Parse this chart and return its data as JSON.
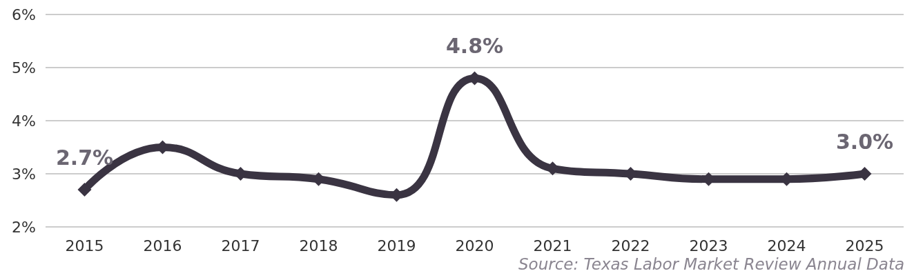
{
  "chart_data": {
    "type": "line",
    "categories": [
      "2015",
      "2016",
      "2017",
      "2018",
      "2019",
      "2020",
      "2021",
      "2022",
      "2023",
      "2024",
      "2025"
    ],
    "series": [
      {
        "color": "#3a3442",
        "values": [
          2.7,
          3.5,
          3.0,
          2.9,
          2.6,
          4.8,
          3.1,
          3.0,
          2.9,
          2.9,
          3.0
        ],
        "value_labels": [
          "2.7%",
          null,
          null,
          null,
          null,
          "4.8%",
          null,
          null,
          null,
          null,
          "3.0%"
        ]
      }
    ],
    "ylim": [
      2,
      6
    ],
    "yticks": [
      {
        "value": 2,
        "label": "2%"
      },
      {
        "value": 3,
        "label": "3%"
      },
      {
        "value": 4,
        "label": "4%"
      },
      {
        "value": 5,
        "label": "5%"
      },
      {
        "value": 6,
        "label": "6%"
      }
    ],
    "grid": "y",
    "marker": "diamond",
    "line_style": "solid",
    "annotations": [
      "Source: Texas Labor Market Review Annual Data"
    ]
  }
}
